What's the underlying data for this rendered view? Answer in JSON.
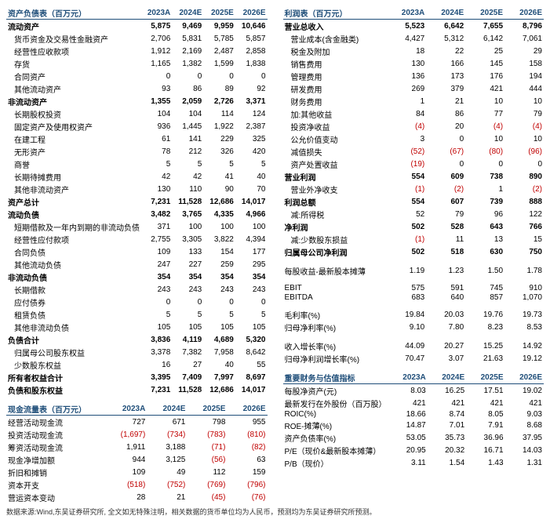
{
  "columns": [
    "2023A",
    "2024E",
    "2025E",
    "2026E"
  ],
  "titles": {
    "balance": "资产负债表（百万元）",
    "income": "利润表（百万元）",
    "cashflow": "现金流量表（百万元）",
    "metrics": "重要财务与估值指标"
  },
  "balance": [
    {
      "label": "流动资产",
      "v": [
        "5,875",
        "9,469",
        "9,959",
        "10,646"
      ],
      "bold": true
    },
    {
      "label": "货币资金及交易性金融资产",
      "v": [
        "2,706",
        "5,831",
        "5,785",
        "5,857"
      ],
      "indent": true
    },
    {
      "label": "经营性应收款项",
      "v": [
        "1,912",
        "2,169",
        "2,487",
        "2,858"
      ],
      "indent": true
    },
    {
      "label": "存货",
      "v": [
        "1,165",
        "1,382",
        "1,599",
        "1,838"
      ],
      "indent": true
    },
    {
      "label": "合同资产",
      "v": [
        "0",
        "0",
        "0",
        "0"
      ],
      "indent": true
    },
    {
      "label": "其他流动资产",
      "v": [
        "93",
        "86",
        "89",
        "92"
      ],
      "indent": true
    },
    {
      "label": "非流动资产",
      "v": [
        "1,355",
        "2,059",
        "2,726",
        "3,371"
      ],
      "bold": true
    },
    {
      "label": "长期股权投资",
      "v": [
        "104",
        "104",
        "114",
        "124"
      ],
      "indent": true
    },
    {
      "label": "固定资产及使用权资产",
      "v": [
        "936",
        "1,445",
        "1,922",
        "2,387"
      ],
      "indent": true
    },
    {
      "label": "在建工程",
      "v": [
        "61",
        "141",
        "229",
        "325"
      ],
      "indent": true
    },
    {
      "label": "无形资产",
      "v": [
        "78",
        "212",
        "326",
        "420"
      ],
      "indent": true
    },
    {
      "label": "商誉",
      "v": [
        "5",
        "5",
        "5",
        "5"
      ],
      "indent": true
    },
    {
      "label": "长期待摊费用",
      "v": [
        "42",
        "42",
        "41",
        "40"
      ],
      "indent": true
    },
    {
      "label": "其他非流动资产",
      "v": [
        "130",
        "110",
        "90",
        "70"
      ],
      "indent": true
    },
    {
      "label": "资产总计",
      "v": [
        "7,231",
        "11,528",
        "12,686",
        "14,017"
      ],
      "bold": true
    },
    {
      "label": "流动负债",
      "v": [
        "3,482",
        "3,765",
        "4,335",
        "4,966"
      ],
      "bold": true
    },
    {
      "label": "短期借款及一年内到期的非流动负债",
      "v": [
        "371",
        "100",
        "100",
        "100"
      ],
      "indent": true
    },
    {
      "label": "经营性应付款项",
      "v": [
        "2,755",
        "3,305",
        "3,822",
        "4,394"
      ],
      "indent": true
    },
    {
      "label": "合同负债",
      "v": [
        "109",
        "133",
        "154",
        "177"
      ],
      "indent": true
    },
    {
      "label": "其他流动负债",
      "v": [
        "247",
        "227",
        "259",
        "295"
      ],
      "indent": true
    },
    {
      "label": "非流动负债",
      "v": [
        "354",
        "354",
        "354",
        "354"
      ],
      "bold": true
    },
    {
      "label": "长期借款",
      "v": [
        "243",
        "243",
        "243",
        "243"
      ],
      "indent": true
    },
    {
      "label": "应付债券",
      "v": [
        "0",
        "0",
        "0",
        "0"
      ],
      "indent": true
    },
    {
      "label": "租赁负债",
      "v": [
        "5",
        "5",
        "5",
        "5"
      ],
      "indent": true
    },
    {
      "label": "其他非流动负债",
      "v": [
        "105",
        "105",
        "105",
        "105"
      ],
      "indent": true
    },
    {
      "label": "负债合计",
      "v": [
        "3,836",
        "4,119",
        "4,689",
        "5,320"
      ],
      "bold": true
    },
    {
      "label": "归属母公司股东权益",
      "v": [
        "3,378",
        "7,382",
        "7,958",
        "8,642"
      ],
      "indent": true
    },
    {
      "label": "少数股东权益",
      "v": [
        "16",
        "27",
        "40",
        "55"
      ],
      "indent": true
    },
    {
      "label": "所有者权益合计",
      "v": [
        "3,395",
        "7,409",
        "7,997",
        "8,697"
      ],
      "bold": true
    },
    {
      "label": "负债和股东权益",
      "v": [
        "7,231",
        "11,528",
        "12,686",
        "14,017"
      ],
      "bold": true
    }
  ],
  "income": [
    {
      "label": "营业总收入",
      "v": [
        "5,523",
        "6,642",
        "7,655",
        "8,796"
      ],
      "bold": true
    },
    {
      "label": "营业成本(含金融类)",
      "v": [
        "4,427",
        "5,312",
        "6,142",
        "7,061"
      ],
      "indent": true
    },
    {
      "label": "税金及附加",
      "v": [
        "18",
        "22",
        "25",
        "29"
      ],
      "indent": true
    },
    {
      "label": "销售费用",
      "v": [
        "130",
        "166",
        "145",
        "158"
      ],
      "indent": true
    },
    {
      "label": "管理费用",
      "v": [
        "136",
        "173",
        "176",
        "194"
      ],
      "indent": true
    },
    {
      "label": "研发费用",
      "v": [
        "269",
        "379",
        "421",
        "444"
      ],
      "indent": true
    },
    {
      "label": "财务费用",
      "v": [
        "1",
        "21",
        "10",
        "10"
      ],
      "indent": true
    },
    {
      "label": "加:其他收益",
      "v": [
        "84",
        "86",
        "77",
        "79"
      ],
      "indent": true
    },
    {
      "label": "投资净收益",
      "v": [
        "(4)",
        "20",
        "(4)",
        "(4)"
      ],
      "indent": true,
      "neg": [
        0,
        2,
        3
      ]
    },
    {
      "label": "公允价值变动",
      "v": [
        "3",
        "0",
        "10",
        "10"
      ],
      "indent": true
    },
    {
      "label": "减值损失",
      "v": [
        "(52)",
        "(67)",
        "(80)",
        "(96)"
      ],
      "indent": true,
      "neg": [
        0,
        1,
        2,
        3
      ]
    },
    {
      "label": "资产处置收益",
      "v": [
        "(19)",
        "0",
        "0",
        "0"
      ],
      "indent": true,
      "neg": [
        0
      ]
    },
    {
      "label": "营业利润",
      "v": [
        "554",
        "609",
        "738",
        "890"
      ],
      "bold": true
    },
    {
      "label": "营业外净收支",
      "v": [
        "(1)",
        "(2)",
        "1",
        "(2)"
      ],
      "indent": true,
      "neg": [
        0,
        1,
        3
      ]
    },
    {
      "label": "利润总额",
      "v": [
        "554",
        "607",
        "739",
        "888"
      ],
      "bold": true
    },
    {
      "label": "减:所得税",
      "v": [
        "52",
        "79",
        "96",
        "122"
      ],
      "indent": true
    },
    {
      "label": "净利润",
      "v": [
        "502",
        "528",
        "643",
        "766"
      ],
      "bold": true
    },
    {
      "label": "减:少数股东损益",
      "v": [
        "(1)",
        "11",
        "13",
        "15"
      ],
      "indent": true,
      "neg": [
        0
      ]
    },
    {
      "label": "归属母公司净利润",
      "v": [
        "502",
        "518",
        "630",
        "750"
      ],
      "bold": true
    },
    {
      "label": "",
      "v": [
        "",
        "",
        "",
        ""
      ],
      "spacer": true
    },
    {
      "label": "每股收益-最新股本摊薄",
      "v": [
        "1.19",
        "1.23",
        "1.50",
        "1.78"
      ]
    },
    {
      "label": "",
      "v": [
        "",
        "",
        "",
        ""
      ],
      "spacer": true
    },
    {
      "label": "EBIT",
      "v": [
        "575",
        "591",
        "745",
        "910"
      ]
    },
    {
      "label": "EBITDA",
      "v": [
        "683",
        "640",
        "857",
        "1,070"
      ]
    },
    {
      "label": "",
      "v": [
        "",
        "",
        "",
        ""
      ],
      "spacer": true
    },
    {
      "label": "毛利率(%)",
      "v": [
        "19.84",
        "20.03",
        "19.76",
        "19.73"
      ]
    },
    {
      "label": "归母净利率(%)",
      "v": [
        "9.10",
        "7.80",
        "8.23",
        "8.53"
      ]
    },
    {
      "label": "",
      "v": [
        "",
        "",
        "",
        ""
      ],
      "spacer": true
    },
    {
      "label": "收入增长率(%)",
      "v": [
        "44.09",
        "20.27",
        "15.25",
        "14.92"
      ]
    },
    {
      "label": "归母净利润增长率(%)",
      "v": [
        "70.47",
        "3.07",
        "21.63",
        "19.12"
      ]
    }
  ],
  "cashflow": [
    {
      "label": "经营活动现金流",
      "v": [
        "727",
        "671",
        "798",
        "955"
      ]
    },
    {
      "label": "投资活动现金流",
      "v": [
        "(1,697)",
        "(734)",
        "(783)",
        "(810)"
      ],
      "neg": [
        0,
        1,
        2,
        3
      ]
    },
    {
      "label": "筹资活动现金流",
      "v": [
        "1,911",
        "3,188",
        "(71)",
        "(82)"
      ],
      "neg": [
        2,
        3
      ]
    },
    {
      "label": "现金净增加额",
      "v": [
        "944",
        "3,125",
        "(56)",
        "63"
      ],
      "neg": [
        2
      ]
    },
    {
      "label": "折旧和摊销",
      "v": [
        "109",
        "49",
        "112",
        "159"
      ]
    },
    {
      "label": "资本开支",
      "v": [
        "(518)",
        "(752)",
        "(769)",
        "(796)"
      ],
      "neg": [
        0,
        1,
        2,
        3
      ]
    },
    {
      "label": "营运资本变动",
      "v": [
        "28",
        "21",
        "(45)",
        "(76)"
      ],
      "neg": [
        2,
        3
      ]
    }
  ],
  "metrics": [
    {
      "label": "每股净资产(元)",
      "v": [
        "8.03",
        "16.25",
        "17.51",
        "19.02"
      ]
    },
    {
      "label": "最新发行在外股份（百万股）",
      "v": [
        "421",
        "421",
        "421",
        "421"
      ]
    },
    {
      "label": "ROIC(%)",
      "v": [
        "18.66",
        "8.74",
        "8.05",
        "9.03"
      ]
    },
    {
      "label": "ROE-摊薄(%)",
      "v": [
        "14.87",
        "7.01",
        "7.91",
        "8.68"
      ]
    },
    {
      "label": "资产负债率(%)",
      "v": [
        "53.05",
        "35.73",
        "36.96",
        "37.95"
      ]
    },
    {
      "label": "P/E（现价&最新股本摊薄）",
      "v": [
        "20.95",
        "20.32",
        "16.71",
        "14.03"
      ]
    },
    {
      "label": "P/B（现价）",
      "v": [
        "3.11",
        "1.54",
        "1.43",
        "1.31"
      ]
    }
  ],
  "footnote": "数据来源:Wind,东吴证券研究所,   全文如无特殊注明，相关数据的货币单位均为人民币，预测均为东吴证券研究所预测。"
}
